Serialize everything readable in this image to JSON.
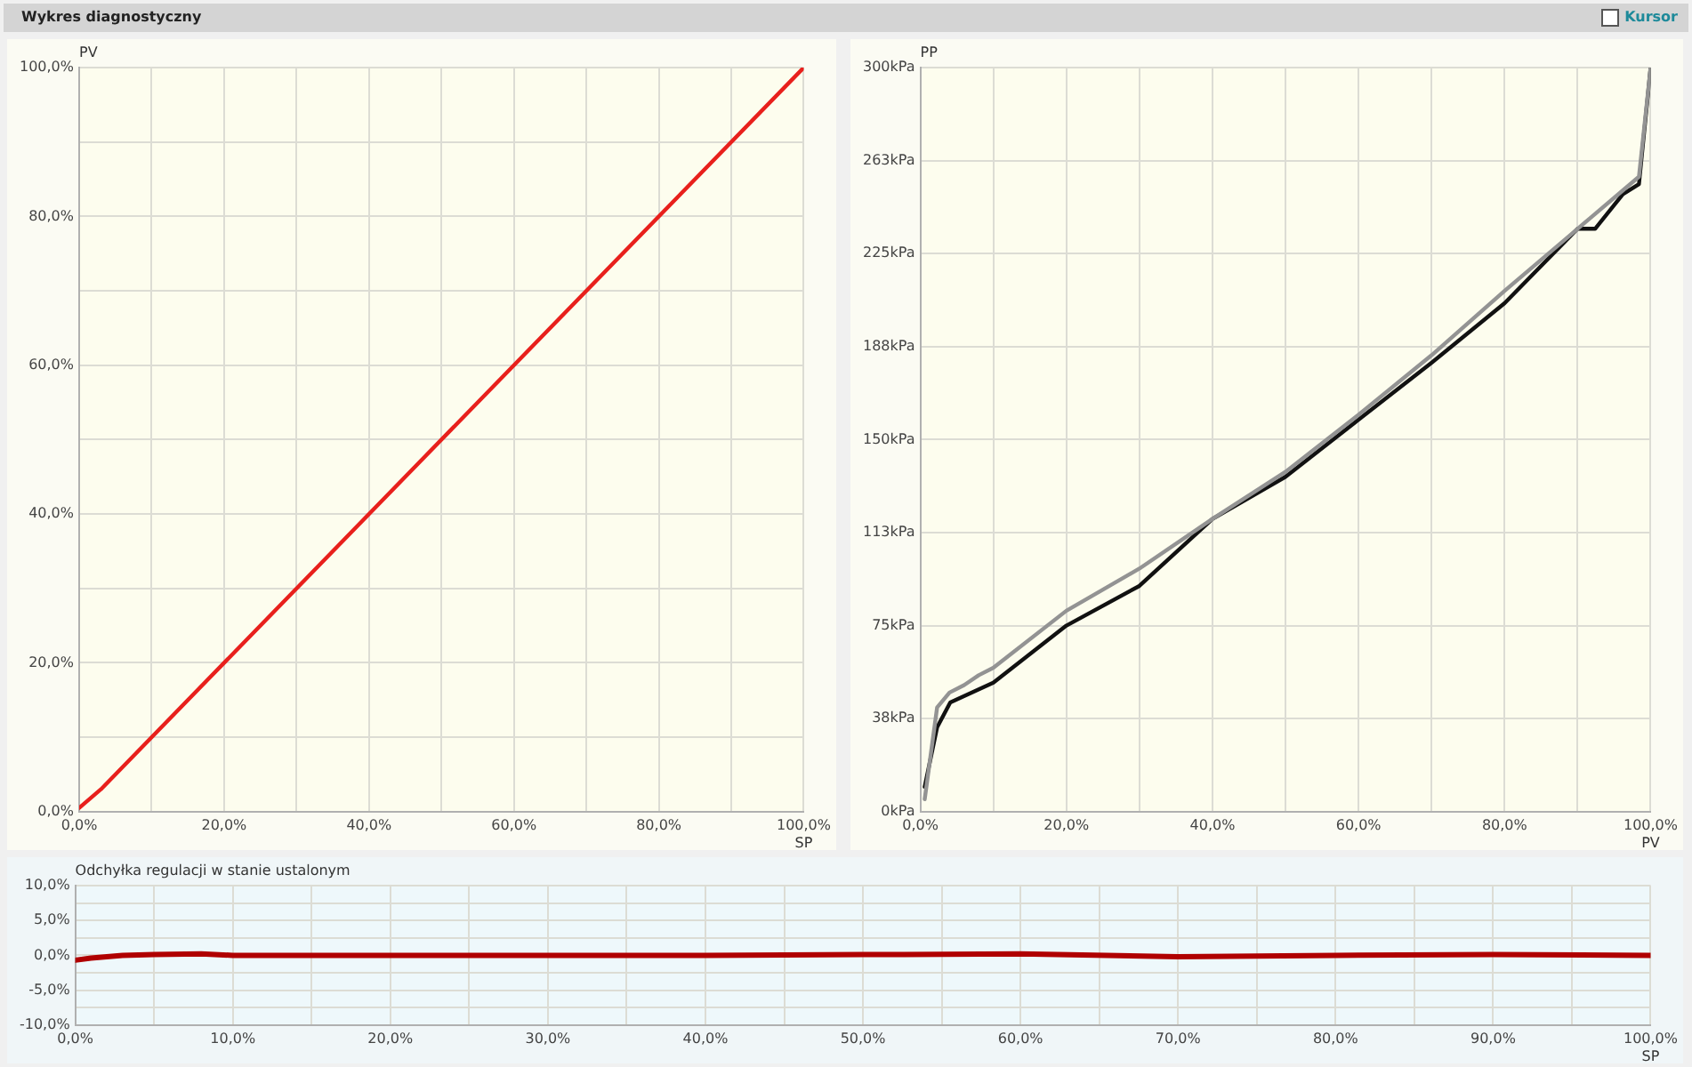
{
  "chart_data": [
    {
      "type": "line",
      "title": "Wykres diagnostyczny",
      "xlabel": "SP",
      "ylabel": "PV",
      "grid": true,
      "legend": false,
      "marker": "none",
      "line_style": "solid",
      "series": [
        {
          "color": "#e8201c",
          "x": [
            0,
            3,
            100
          ],
          "values": [
            0.5,
            3,
            100
          ]
        }
      ],
      "xlim": [
        0,
        100
      ],
      "ylim": [
        0,
        100
      ],
      "xticks": [
        {
          "value": 0,
          "label": "0,0%"
        },
        {
          "value": 10,
          "label": null
        },
        {
          "value": 20,
          "label": "20,0%"
        },
        {
          "value": 30,
          "label": null
        },
        {
          "value": 40,
          "label": "40,0%"
        },
        {
          "value": 50,
          "label": null
        },
        {
          "value": 60,
          "label": "60,0%"
        },
        {
          "value": 70,
          "label": null
        },
        {
          "value": 80,
          "label": "80,0%"
        },
        {
          "value": 90,
          "label": null
        },
        {
          "value": 100,
          "label": "100,0%"
        }
      ],
      "yticks": [
        {
          "value": 0,
          "label": "0,0%"
        },
        {
          "value": 10,
          "label": null
        },
        {
          "value": 20,
          "label": "20,0%"
        },
        {
          "value": 30,
          "label": null
        },
        {
          "value": 40,
          "label": "40,0%"
        },
        {
          "value": 50,
          "label": null
        },
        {
          "value": 60,
          "label": "60,0%"
        },
        {
          "value": 70,
          "label": null
        },
        {
          "value": 80,
          "label": "80,0%"
        },
        {
          "value": 90,
          "label": null
        },
        {
          "value": 100,
          "label": "100,0%"
        }
      ]
    },
    {
      "type": "line",
      "xlabel": "PV",
      "ylabel": "PP",
      "grid": true,
      "legend": false,
      "marker": "none",
      "line_style": "solid",
      "annotations": [
        "Kursor"
      ],
      "series": [
        {
          "color": "#939393",
          "x": [
            0.6,
            2.3,
            4,
            6,
            8,
            10,
            20,
            30,
            40,
            50,
            60,
            70,
            80,
            90,
            92,
            96,
            98.4,
            100
          ],
          "values": [
            5,
            42,
            48,
            51,
            55,
            58,
            81,
            98,
            118,
            137,
            160,
            184,
            210,
            235,
            240,
            250,
            256,
            300
          ]
        },
        {
          "color": "#111111",
          "x": [
            0.6,
            2.3,
            4.1,
            10,
            20,
            30,
            40,
            50,
            60,
            70,
            80,
            90,
            92.4,
            96.2,
            98.4,
            100
          ],
          "values": [
            10,
            34,
            44,
            52,
            75,
            91,
            118,
            135,
            158,
            181,
            205,
            235,
            235,
            249,
            253,
            300
          ]
        }
      ],
      "xlim": [
        0,
        100
      ],
      "ylim": [
        0,
        300
      ],
      "xticks": [
        {
          "value": 0,
          "label": "0,0%"
        },
        {
          "value": 10,
          "label": null
        },
        {
          "value": 20,
          "label": "20,0%"
        },
        {
          "value": 30,
          "label": null
        },
        {
          "value": 40,
          "label": "40,0%"
        },
        {
          "value": 50,
          "label": null
        },
        {
          "value": 60,
          "label": "60,0%"
        },
        {
          "value": 70,
          "label": null
        },
        {
          "value": 80,
          "label": "80,0%"
        },
        {
          "value": 90,
          "label": null
        },
        {
          "value": 100,
          "label": "100,0%"
        }
      ],
      "yticks": [
        {
          "value": 0,
          "label": "0kPa"
        },
        {
          "value": 37.5,
          "label": "38kPa"
        },
        {
          "value": 75,
          "label": "75kPa"
        },
        {
          "value": 112.5,
          "label": "113kPa"
        },
        {
          "value": 150,
          "label": "150kPa"
        },
        {
          "value": 187.5,
          "label": "188kPa"
        },
        {
          "value": 225,
          "label": "225kPa"
        },
        {
          "value": 262.5,
          "label": "263kPa"
        },
        {
          "value": 300,
          "label": "300kPa"
        }
      ]
    },
    {
      "type": "line",
      "ylabel": "Odchyłka regulacji w stanie ustalonym",
      "xlabel": "SP",
      "grid": true,
      "legend": false,
      "marker": "none",
      "line_style": "solid",
      "series": [
        {
          "color": "#b00000",
          "x": [
            0,
            1,
            3,
            5,
            8,
            10,
            20,
            30,
            40,
            50,
            60,
            70,
            80,
            90,
            100
          ],
          "values": [
            -0.7,
            -0.4,
            0,
            0.1,
            0.2,
            0,
            0,
            0,
            0,
            0.1,
            0.2,
            -0.2,
            0,
            0.1,
            0
          ]
        }
      ],
      "xlim": [
        0,
        100
      ],
      "ylim": [
        -10,
        10
      ],
      "xticks": [
        {
          "value": 0,
          "label": "0,0%"
        },
        {
          "value": 5,
          "label": null
        },
        {
          "value": 10,
          "label": "10,0%"
        },
        {
          "value": 15,
          "label": null
        },
        {
          "value": 20,
          "label": "20,0%"
        },
        {
          "value": 25,
          "label": null
        },
        {
          "value": 30,
          "label": "30,0%"
        },
        {
          "value": 35,
          "label": null
        },
        {
          "value": 40,
          "label": "40,0%"
        },
        {
          "value": 45,
          "label": null
        },
        {
          "value": 50,
          "label": "50,0%"
        },
        {
          "value": 55,
          "label": null
        },
        {
          "value": 60,
          "label": "60,0%"
        },
        {
          "value": 65,
          "label": null
        },
        {
          "value": 70,
          "label": "70,0%"
        },
        {
          "value": 75,
          "label": null
        },
        {
          "value": 80,
          "label": "80,0%"
        },
        {
          "value": 85,
          "label": null
        },
        {
          "value": 90,
          "label": "90,0%"
        },
        {
          "value": 95,
          "label": null
        },
        {
          "value": 100,
          "label": "100,0%"
        }
      ],
      "yticks": [
        {
          "value": -10,
          "label": "-10,0%"
        },
        {
          "value": -7.5,
          "label": null
        },
        {
          "value": -5,
          "label": "-5,0%"
        },
        {
          "value": -2.5,
          "label": null
        },
        {
          "value": 0,
          "label": "0,0%"
        },
        {
          "value": 2.5,
          "label": null
        },
        {
          "value": 5,
          "label": "5,0%"
        },
        {
          "value": 7.5,
          "label": null
        },
        {
          "value": 10,
          "label": "10,0%"
        }
      ]
    }
  ]
}
